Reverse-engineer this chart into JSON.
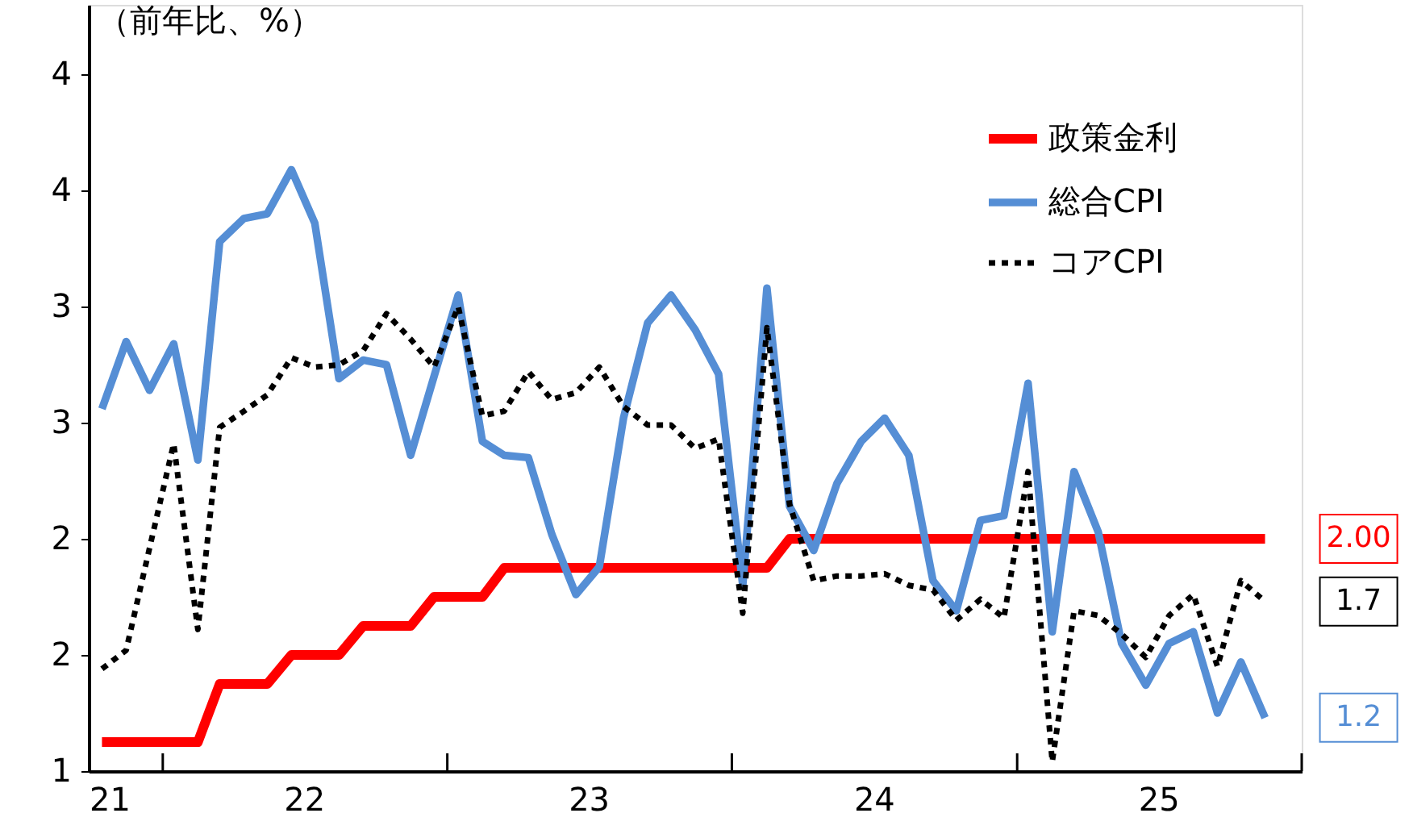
{
  "chart_data": {
    "type": "line",
    "ylabel": "（前年比、%）",
    "x": [
      "2021-10-15",
      "2021-11-15",
      "2021-12-15",
      "2022-01-15",
      "2022-02-15",
      "2022-03-15",
      "2022-04-15",
      "2022-05-15",
      "2022-06-15",
      "2022-07-15",
      "2022-08-15",
      "2022-09-15",
      "2022-10-15",
      "2022-11-15",
      "2022-12-15",
      "2023-01-15",
      "2023-02-15",
      "2023-03-15",
      "2023-04-15",
      "2023-05-15",
      "2023-06-15",
      "2023-07-15",
      "2023-08-15",
      "2023-09-15",
      "2023-10-15",
      "2023-11-15",
      "2023-12-15",
      "2024-01-15",
      "2024-02-15",
      "2024-03-15",
      "2024-04-15",
      "2024-05-15",
      "2024-06-15",
      "2024-07-15",
      "2024-08-15",
      "2024-09-15",
      "2024-10-15",
      "2024-11-15",
      "2024-12-15",
      "2025-01-15",
      "2025-02-15",
      "2025-03-15",
      "2025-04-15",
      "2025-05-15",
      "2025-06-15",
      "2025-07-15",
      "2025-08-15",
      "2025-09-15",
      "2025-10-15",
      "2025-11-15"
    ],
    "series": [
      {
        "name": "政策金利",
        "color": "#ff0000",
        "line_style": "solid",
        "values": [
          1.125,
          1.125,
          1.125,
          1.125,
          1.125,
          1.375,
          1.375,
          1.375,
          1.5,
          1.5,
          1.5,
          1.625,
          1.625,
          1.625,
          1.75,
          1.75,
          1.75,
          1.875,
          1.875,
          1.875,
          1.875,
          1.875,
          1.875,
          1.875,
          1.875,
          1.875,
          1.875,
          1.875,
          1.875,
          2.0,
          2.0,
          2.0,
          2.0,
          2.0,
          2.0,
          2.0,
          2.0,
          2.0,
          2.0,
          2.0,
          2.0,
          2.0,
          2.0,
          2.0,
          2.0,
          2.0,
          2.0,
          2.0,
          2.0,
          2.0
        ]
      },
      {
        "name": "総合CPI",
        "color": "#558ed5",
        "line_style": "solid",
        "values": [
          2.56,
          2.85,
          2.64,
          2.84,
          2.34,
          3.28,
          3.38,
          3.4,
          3.59,
          3.36,
          2.69,
          2.77,
          2.75,
          2.36,
          2.7,
          3.05,
          2.42,
          2.36,
          2.35,
          2.02,
          1.76,
          1.88,
          2.52,
          2.93,
          3.05,
          2.9,
          2.71,
          1.8,
          3.08,
          2.14,
          1.95,
          2.24,
          2.42,
          2.52,
          2.36,
          1.82,
          1.69,
          2.08,
          2.1,
          2.67,
          1.6,
          2.29,
          2.03,
          1.55,
          1.37,
          1.55,
          1.6,
          1.25,
          1.47,
          1.23
        ]
      },
      {
        "name": "コアCPI",
        "color": "#000000",
        "line_style": "dashed",
        "values": [
          1.44,
          1.52,
          1.96,
          2.41,
          1.61,
          2.48,
          2.55,
          2.62,
          2.78,
          2.74,
          2.75,
          2.81,
          2.97,
          2.86,
          2.74,
          3.0,
          2.53,
          2.55,
          2.72,
          2.6,
          2.63,
          2.74,
          2.57,
          2.49,
          2.49,
          2.39,
          2.43,
          1.68,
          2.91,
          2.15,
          1.82,
          1.84,
          1.84,
          1.85,
          1.8,
          1.78,
          1.65,
          1.74,
          1.66,
          2.29,
          1.04,
          1.69,
          1.67,
          1.59,
          1.49,
          1.67,
          1.76,
          1.45,
          1.82,
          1.73
        ]
      }
    ],
    "annotations": [
      {
        "text": "2.00",
        "x": "2025-11-15",
        "y": 2.0
      },
      {
        "text": "1.2",
        "x": "2025-11-15",
        "y": 1.23
      },
      {
        "text": "1.7",
        "x": "2025-11-15",
        "y": 1.73
      }
    ],
    "xlim": [
      "2021-09-28",
      "2026-01-01"
    ],
    "xticks": [
      {
        "value": "2021-09-28",
        "label": "21"
      },
      {
        "value": "2022-01-01",
        "label": null
      },
      {
        "value": "2022-07-01",
        "label": "22"
      },
      {
        "value": "2023-01-01",
        "label": null
      },
      {
        "value": "2023-07-01",
        "label": "23"
      },
      {
        "value": "2024-01-01",
        "label": null
      },
      {
        "value": "2024-07-01",
        "label": "24"
      },
      {
        "value": "2025-01-01",
        "label": null
      },
      {
        "value": "2025-07-01",
        "label": "25"
      },
      {
        "value": "2026-01-01",
        "label": null
      }
    ],
    "ylim": [
      1,
      4.3
    ],
    "yticks": [
      1,
      {
        "value": 1.5,
        "label": "2"
      },
      2,
      {
        "value": 2.5,
        "label": "3"
      },
      3,
      {
        "value": 3.5,
        "label": "4"
      },
      4
    ],
    "grid": false,
    "legend": "top right"
  }
}
